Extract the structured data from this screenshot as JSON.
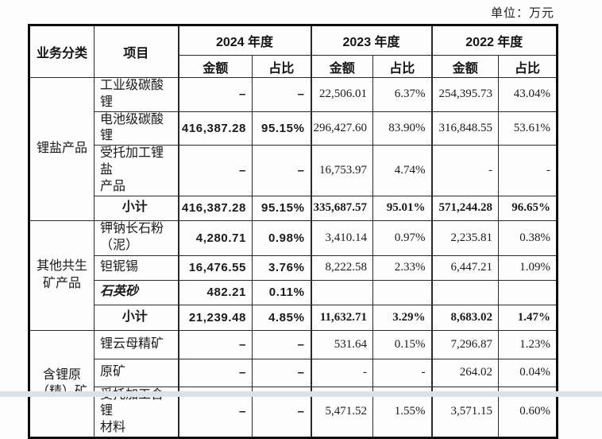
{
  "unit_label": "单位：万元",
  "table": {
    "header": {
      "col_business": "业务分类",
      "col_item": "项目",
      "year_groups": [
        {
          "label": "2024 年度"
        },
        {
          "label": "2023 年度"
        },
        {
          "label": "2022 年度"
        }
      ],
      "amount_label": "金额",
      "ratio_label": "占比"
    },
    "sections": [
      {
        "category": "锂盐产品",
        "rows": [
          {
            "item": "工业级碳酸锂",
            "values": [
              "–",
              "–",
              "22,506.01",
              "6.37%",
              "254,395.73",
              "43.04%"
            ]
          },
          {
            "item": "电池级碳酸锂",
            "values": [
              "416,387.28",
              "95.15%",
              "296,427.60",
              "83.90%",
              "316,848.55",
              "53.61%"
            ]
          },
          {
            "item": "受托加工锂盐\n产品",
            "values": [
              "–",
              "–",
              "16,753.97",
              "4.74%",
              "-",
              "-"
            ]
          },
          {
            "item": "小计",
            "subtotal": true,
            "values": [
              "416,387.28",
              "95.15%",
              "335,687.57",
              "95.01%",
              "571,244.28",
              "96.65%"
            ]
          }
        ]
      },
      {
        "category": "其他共生\n矿产品",
        "rows": [
          {
            "item": "钾钠长石粉\n（泥）",
            "values": [
              "4,280.71",
              "0.98%",
              "3,410.14",
              "0.97%",
              "2,235.81",
              "0.38%"
            ]
          },
          {
            "item": "钽铌锡",
            "values": [
              "16,476.55",
              "3.76%",
              "8,222.58",
              "2.33%",
              "6,447.21",
              "1.09%"
            ]
          },
          {
            "item": "石英砂",
            "italic": true,
            "values": [
              "482.21",
              "0.11%",
              "",
              "",
              "",
              ""
            ]
          },
          {
            "item": "小计",
            "subtotal": true,
            "values": [
              "21,239.48",
              "4.85%",
              "11,632.71",
              "3.29%",
              "8,683.02",
              "1.47%"
            ]
          }
        ]
      },
      {
        "category": "含锂原\n（精）矿",
        "rows": [
          {
            "item": "锂云母精矿",
            "values": [
              "–",
              "–",
              "531.64",
              "0.15%",
              "7,296.87",
              "1.23%"
            ]
          },
          {
            "item": "原矿",
            "values": [
              "–",
              "–",
              "-",
              "-",
              "264.02",
              "0.04%"
            ]
          },
          {
            "item": "受托加工含锂\n材料",
            "values": [
              "–",
              "–",
              "5,471.52",
              "1.55%",
              "3,571.15",
              "0.60%"
            ]
          }
        ]
      }
    ]
  }
}
